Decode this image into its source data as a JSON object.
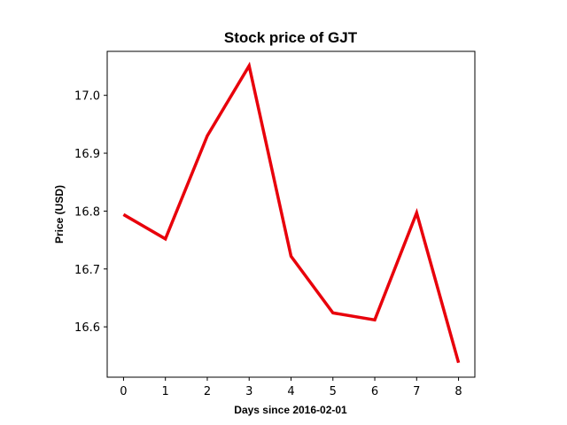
{
  "chart_data": {
    "type": "line",
    "title": "Stock price of GJT",
    "xlabel": "Days since 2016-02-01",
    "ylabel": "Price (USD)",
    "x": [
      0,
      1,
      2,
      3,
      4,
      5,
      6,
      7,
      8
    ],
    "series": [
      {
        "values": [
          16.794,
          16.752,
          16.93,
          17.051,
          16.722,
          16.624,
          16.612,
          16.797,
          16.538
        ],
        "color": "#e8000b"
      }
    ],
    "xlim": [
      -0.39,
      8.39
    ],
    "ylim": [
      16.513,
      17.076
    ],
    "xticks": [
      0,
      1,
      2,
      3,
      4,
      5,
      6,
      7,
      8
    ],
    "yticks": [
      16.6,
      16.7,
      16.8,
      16.9,
      17.0
    ],
    "ytick_labels": [
      "16.6",
      "16.7",
      "16.8",
      "16.9",
      "17.0"
    ],
    "grid": false
  }
}
